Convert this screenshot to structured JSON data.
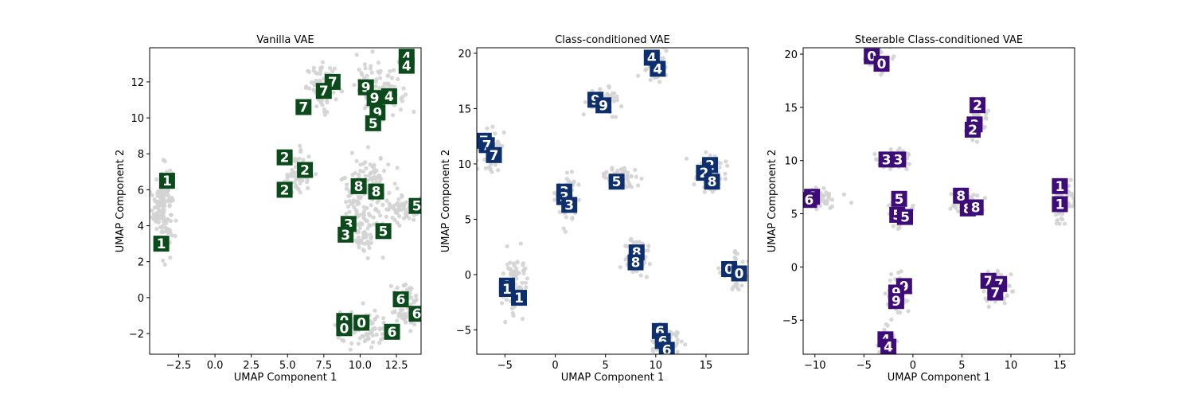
{
  "chart_data": [
    {
      "type": "scatter",
      "title": "Vanilla VAE",
      "xlabel": "UMAP Component 1",
      "ylabel": "UMAP Component 2",
      "xlim": [
        -4.5,
        14.2
      ],
      "ylim": [
        -3.15,
        13.9
      ],
      "xticks": [
        -2.5,
        0.0,
        2.5,
        5.0,
        7.5,
        10.0,
        12.5
      ],
      "xtick_labels": [
        "−2.5",
        "0.0",
        "2.5",
        "5.0",
        "7.5",
        "10.0",
        "12.5"
      ],
      "yticks": [
        -2,
        0,
        2,
        4,
        6,
        8,
        10,
        12
      ],
      "ytick_labels": [
        "−2",
        "0",
        "2",
        "4",
        "6",
        "8",
        "10",
        "12"
      ],
      "point_color": "#d3d3d3",
      "thumb_color": "#0b4a1a",
      "clusters": [
        {
          "cx": -3.6,
          "cy": 5.2,
          "sx": 0.35,
          "sy": 1.1,
          "n": 150
        },
        {
          "cx": 7.5,
          "cy": 11.7,
          "sx": 0.6,
          "sy": 0.6,
          "n": 70
        },
        {
          "cx": 11.3,
          "cy": 11.6,
          "sx": 0.8,
          "sy": 0.7,
          "n": 110
        },
        {
          "cx": 5.7,
          "cy": 6.9,
          "sx": 0.45,
          "sy": 0.6,
          "n": 60
        },
        {
          "cx": 10.4,
          "cy": 6.2,
          "sx": 0.8,
          "sy": 0.9,
          "n": 110
        },
        {
          "cx": 12.6,
          "cy": 5.0,
          "sx": 0.9,
          "sy": 0.4,
          "n": 60
        },
        {
          "cx": 10.1,
          "cy": 3.9,
          "sx": 0.5,
          "sy": 0.8,
          "n": 70
        },
        {
          "cx": 13.2,
          "cy": -0.4,
          "sx": 0.6,
          "sy": 0.7,
          "n": 70
        },
        {
          "cx": 10.2,
          "cy": -1.9,
          "sx": 0.9,
          "sy": 0.5,
          "n": 90
        }
      ],
      "thumbnails": [
        {
          "x": 13.2,
          "y": 13.4,
          "digit": "4"
        },
        {
          "x": 13.2,
          "y": 12.9,
          "digit": "4"
        },
        {
          "x": 8.1,
          "y": 12.0,
          "digit": "7"
        },
        {
          "x": 7.5,
          "y": 11.5,
          "digit": "7"
        },
        {
          "x": 6.1,
          "y": 10.6,
          "digit": "7"
        },
        {
          "x": 10.4,
          "y": 11.7,
          "digit": "9"
        },
        {
          "x": 11.0,
          "y": 11.1,
          "digit": "9"
        },
        {
          "x": 12.0,
          "y": 11.2,
          "digit": "4"
        },
        {
          "x": 11.2,
          "y": 10.3,
          "digit": "9"
        },
        {
          "x": 10.9,
          "y": 9.7,
          "digit": "5"
        },
        {
          "x": 4.8,
          "y": 7.8,
          "digit": "2"
        },
        {
          "x": 6.2,
          "y": 7.1,
          "digit": "2"
        },
        {
          "x": 4.8,
          "y": 6.0,
          "digit": "2"
        },
        {
          "x": -3.3,
          "y": 6.5,
          "digit": "1"
        },
        {
          "x": 9.9,
          "y": 6.2,
          "digit": "8"
        },
        {
          "x": 11.1,
          "y": 5.9,
          "digit": "8"
        },
        {
          "x": 13.9,
          "y": 5.1,
          "digit": "5"
        },
        {
          "x": 9.2,
          "y": 4.1,
          "digit": "3"
        },
        {
          "x": 9.0,
          "y": 3.5,
          "digit": "3"
        },
        {
          "x": 11.6,
          "y": 3.7,
          "digit": "5"
        },
        {
          "x": -3.7,
          "y": 3.0,
          "digit": "1"
        },
        {
          "x": 12.8,
          "y": -0.1,
          "digit": "6"
        },
        {
          "x": 13.9,
          "y": -0.9,
          "digit": "6"
        },
        {
          "x": 8.9,
          "y": -1.3,
          "digit": "0"
        },
        {
          "x": 8.9,
          "y": -1.7,
          "digit": "0"
        },
        {
          "x": 10.1,
          "y": -1.4,
          "digit": "0"
        },
        {
          "x": 12.2,
          "y": -1.9,
          "digit": "6"
        }
      ]
    },
    {
      "type": "scatter",
      "title": "Class-conditioned VAE",
      "xlabel": "UMAP Component 1",
      "ylabel": "UMAP Component 2",
      "xlim": [
        -7.8,
        19.2
      ],
      "ylim": [
        -7.2,
        20.5
      ],
      "xticks": [
        -5,
        0,
        5,
        10,
        15
      ],
      "xtick_labels": [
        "−5",
        "0",
        "5",
        "10",
        "15"
      ],
      "yticks": [
        -5,
        0,
        5,
        10,
        15,
        20
      ],
      "ytick_labels": [
        "−5",
        "0",
        "5",
        "10",
        "15",
        "20"
      ],
      "point_color": "#d3d3d3",
      "thumb_color": "#0d2f6e",
      "clusters": [
        {
          "cx": 10.0,
          "cy": 19.0,
          "sx": 0.6,
          "sy": 0.8,
          "n": 60
        },
        {
          "cx": 4.8,
          "cy": 15.6,
          "sx": 0.8,
          "sy": 0.7,
          "n": 60
        },
        {
          "cx": -6.5,
          "cy": 11.2,
          "sx": 0.6,
          "sy": 0.9,
          "n": 60
        },
        {
          "cx": 6.5,
          "cy": 8.8,
          "sx": 0.8,
          "sy": 0.5,
          "n": 60
        },
        {
          "cx": 15.5,
          "cy": 9.4,
          "sx": 0.8,
          "sy": 0.8,
          "n": 70
        },
        {
          "cx": 1.2,
          "cy": 6.7,
          "sx": 0.5,
          "sy": 1.0,
          "n": 60
        },
        {
          "cx": 7.9,
          "cy": 1.6,
          "sx": 0.5,
          "sy": 0.9,
          "n": 60
        },
        {
          "cx": -4.1,
          "cy": -0.9,
          "sx": 0.6,
          "sy": 1.4,
          "n": 80
        },
        {
          "cx": 18.0,
          "cy": 0.1,
          "sx": 0.7,
          "sy": 0.8,
          "n": 60
        },
        {
          "cx": 11.0,
          "cy": -6.0,
          "sx": 0.8,
          "sy": 0.7,
          "n": 60
        }
      ],
      "thumbnails": [
        {
          "x": 9.6,
          "y": 19.6,
          "digit": "4"
        },
        {
          "x": 10.2,
          "y": 18.6,
          "digit": "4"
        },
        {
          "x": 4.0,
          "y": 15.8,
          "digit": "9"
        },
        {
          "x": 4.8,
          "y": 15.3,
          "digit": "9"
        },
        {
          "x": -7.1,
          "y": 12.1,
          "digit": "7"
        },
        {
          "x": -6.8,
          "y": 11.7,
          "digit": "7"
        },
        {
          "x": -6.1,
          "y": 10.8,
          "digit": "7"
        },
        {
          "x": 6.1,
          "y": 8.4,
          "digit": "5"
        },
        {
          "x": 15.4,
          "y": 9.9,
          "digit": "2"
        },
        {
          "x": 14.8,
          "y": 9.2,
          "digit": "2"
        },
        {
          "x": 15.6,
          "y": 8.4,
          "digit": "8"
        },
        {
          "x": 0.9,
          "y": 7.5,
          "digit": "3"
        },
        {
          "x": 0.9,
          "y": 7.0,
          "digit": "3"
        },
        {
          "x": 1.4,
          "y": 6.3,
          "digit": "3"
        },
        {
          "x": 8.1,
          "y": 2.0,
          "digit": "8"
        },
        {
          "x": 8.0,
          "y": 1.1,
          "digit": "8"
        },
        {
          "x": -4.8,
          "y": -1.0,
          "digit": "1"
        },
        {
          "x": -4.8,
          "y": -1.3,
          "digit": "1"
        },
        {
          "x": -3.6,
          "y": -2.1,
          "digit": "1"
        },
        {
          "x": 17.3,
          "y": 0.5,
          "digit": "0"
        },
        {
          "x": 18.3,
          "y": 0.1,
          "digit": "0"
        },
        {
          "x": 10.4,
          "y": -5.1,
          "digit": "6"
        },
        {
          "x": 10.7,
          "y": -6.0,
          "digit": "6"
        },
        {
          "x": 11.1,
          "y": -6.8,
          "digit": "6"
        }
      ]
    },
    {
      "type": "scatter",
      "title": "Steerable Class-conditioned VAE",
      "xlabel": "UMAP Component 1",
      "ylabel": "UMAP Component 2",
      "xlim": [
        -11.2,
        16.5
      ],
      "ylim": [
        -8.2,
        20.6
      ],
      "xticks": [
        -10,
        -5,
        0,
        5,
        10,
        15
      ],
      "xtick_labels": [
        "−10",
        "−5",
        "0",
        "5",
        "10",
        "15"
      ],
      "yticks": [
        -5,
        0,
        5,
        10,
        15,
        20
      ],
      "ytick_labels": [
        "−5",
        "0",
        "5",
        "10",
        "15",
        "20"
      ],
      "point_color": "#d3d3d3",
      "thumb_color": "#3d0c78",
      "clusters": [
        {
          "cx": -3.6,
          "cy": 19.4,
          "sx": 0.6,
          "sy": 0.6,
          "n": 40
        },
        {
          "cx": 6.5,
          "cy": 14.0,
          "sx": 0.5,
          "sy": 1.0,
          "n": 50
        },
        {
          "cx": -2.0,
          "cy": 10.0,
          "sx": 0.8,
          "sy": 0.5,
          "n": 50
        },
        {
          "cx": -9.8,
          "cy": 6.3,
          "sx": 0.9,
          "sy": 0.5,
          "n": 60
        },
        {
          "cx": -1.3,
          "cy": 5.1,
          "sx": 0.6,
          "sy": 0.8,
          "n": 50
        },
        {
          "cx": 5.6,
          "cy": 6.1,
          "sx": 0.8,
          "sy": 0.5,
          "n": 50
        },
        {
          "cx": 15.4,
          "cy": 6.2,
          "sx": 0.5,
          "sy": 1.1,
          "n": 60
        },
        {
          "cx": 8.3,
          "cy": -1.8,
          "sx": 0.7,
          "sy": 0.8,
          "n": 60
        },
        {
          "cx": -1.6,
          "cy": -2.4,
          "sx": 0.5,
          "sy": 0.9,
          "n": 60
        },
        {
          "cx": -2.6,
          "cy": -6.8,
          "sx": 0.5,
          "sy": 0.7,
          "n": 40
        }
      ],
      "thumbnails": [
        {
          "x": -4.2,
          "y": 19.8,
          "digit": "0"
        },
        {
          "x": -3.2,
          "y": 19.1,
          "digit": "0"
        },
        {
          "x": 6.6,
          "y": 15.2,
          "digit": "2"
        },
        {
          "x": 6.3,
          "y": 13.4,
          "digit": "2"
        },
        {
          "x": 6.1,
          "y": 12.9,
          "digit": "2"
        },
        {
          "x": -2.7,
          "y": 10.1,
          "digit": "3"
        },
        {
          "x": -1.5,
          "y": 10.1,
          "digit": "3"
        },
        {
          "x": -10.3,
          "y": 6.6,
          "digit": "6"
        },
        {
          "x": -10.6,
          "y": 6.3,
          "digit": "6"
        },
        {
          "x": -1.4,
          "y": 6.4,
          "digit": "5"
        },
        {
          "x": -1.6,
          "y": 4.9,
          "digit": "5"
        },
        {
          "x": -0.8,
          "y": 4.7,
          "digit": "5"
        },
        {
          "x": 4.9,
          "y": 6.7,
          "digit": "8"
        },
        {
          "x": 5.6,
          "y": 5.5,
          "digit": "8"
        },
        {
          "x": 6.4,
          "y": 5.6,
          "digit": "8"
        },
        {
          "x": 15.0,
          "y": 7.6,
          "digit": "1"
        },
        {
          "x": 15.0,
          "y": 5.9,
          "digit": "1"
        },
        {
          "x": 7.7,
          "y": -1.3,
          "digit": "7"
        },
        {
          "x": 8.8,
          "y": -1.6,
          "digit": "7"
        },
        {
          "x": 8.4,
          "y": -2.4,
          "digit": "7"
        },
        {
          "x": -0.9,
          "y": -1.8,
          "digit": "9"
        },
        {
          "x": -1.7,
          "y": -2.4,
          "digit": "9"
        },
        {
          "x": -1.7,
          "y": -3.2,
          "digit": "9"
        },
        {
          "x": -2.8,
          "y": -6.8,
          "digit": "4"
        },
        {
          "x": -2.5,
          "y": -7.5,
          "digit": "4"
        }
      ]
    }
  ]
}
